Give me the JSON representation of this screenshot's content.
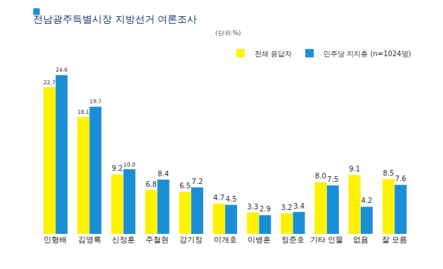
{
  "chart_data": {
    "type": "bar",
    "title": "전남광주특별시장 지방선거 여론조사",
    "subtitle": "(단위:%)",
    "categories": [
      "민형배",
      "김영록",
      "신정훈",
      "주철현",
      "강기정",
      "이개호",
      "이병훈",
      "정준호",
      "기타 인물",
      "없음",
      "잘 모름"
    ],
    "series": [
      {
        "name": "전체 응답자",
        "color": "#fff200",
        "values": [
          22.7,
          18.1,
          9.2,
          6.8,
          6.5,
          4.7,
          3.3,
          3.2,
          8.0,
          9.1,
          8.5
        ],
        "value_labels": [
          "22.7",
          "18.1",
          "9.2",
          "6.8",
          "6.5",
          "4.7",
          "3.3",
          "3.2",
          "8.0",
          "9.1",
          "8.5"
        ]
      },
      {
        "name": "민주당 지지층 (n=1024명)",
        "color": "#1a8fd6",
        "values": [
          24.6,
          19.7,
          10.0,
          8.4,
          7.2,
          4.5,
          2.9,
          3.4,
          7.5,
          4.2,
          7.6
        ],
        "value_labels": [
          "24.6",
          "19.7",
          "10.0",
          "8.4",
          "7.2",
          "4.5",
          "2.9",
          "3.4",
          "7.5",
          "4.2",
          "7.6"
        ]
      }
    ],
    "data_labels": true,
    "legend": "top-right",
    "tick_labels": "x",
    "grid": false
  }
}
